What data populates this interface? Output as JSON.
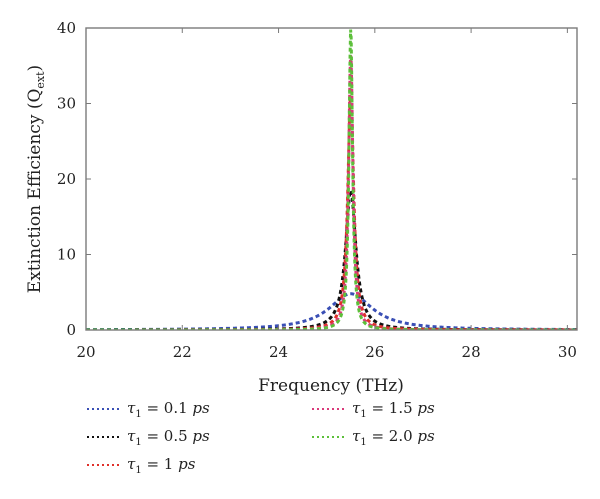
{
  "chart_data": {
    "type": "line",
    "title": "",
    "xlabel": "Frequency (THz)",
    "ylabel": "Extinction Efficiency (Q",
    "ylabel_sub": "ext",
    "ylabel_close": ")",
    "xlim": [
      20,
      30.2
    ],
    "ylim": [
      0,
      40
    ],
    "xticks": [
      20,
      22,
      24,
      26,
      28,
      30
    ],
    "yticks": [
      0,
      10,
      20,
      30,
      40
    ],
    "grid": false,
    "legend_position": "bottom",
    "resonance_frequency": 25.5,
    "series": [
      {
        "name_symbol": "τ",
        "name_sub": "1",
        "name_rest": " = 0.1 ",
        "name_unit": "ps",
        "color": "#3a4fb5",
        "peak": 4.8,
        "half_width": 0.55
      },
      {
        "name_symbol": "τ",
        "name_sub": "1",
        "name_rest": " = 0.5 ",
        "name_unit": "ps",
        "color": "#111111",
        "peak": 18.5,
        "half_width": 0.13
      },
      {
        "name_symbol": "τ",
        "name_sub": "1",
        "name_rest": " = 1 ",
        "name_unit": "ps",
        "color": "#e0302a",
        "peak": 31.0,
        "half_width": 0.075
      },
      {
        "name_symbol": "τ",
        "name_sub": "1",
        "name_rest": " = 1.5 ",
        "name_unit": "ps",
        "color": "#d93a7a",
        "peak": 36.5,
        "half_width": 0.055
      },
      {
        "name_symbol": "τ",
        "name_sub": "1",
        "name_rest": " = 2.0 ",
        "name_unit": "ps",
        "color": "#5cbf3a",
        "peak": 40,
        "half_width": 0.045
      }
    ]
  }
}
